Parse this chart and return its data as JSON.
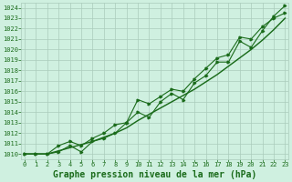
{
  "xlabel": "Graphe pression niveau de la mer (hPa)",
  "x_hours": [
    0,
    1,
    2,
    3,
    4,
    5,
    6,
    7,
    8,
    9,
    10,
    11,
    12,
    13,
    14,
    15,
    16,
    17,
    18,
    19,
    20,
    21,
    22,
    23
  ],
  "pressure_line1": [
    1010.0,
    1010.0,
    1010.0,
    1010.2,
    1010.8,
    1010.2,
    1011.2,
    1011.5,
    1012.0,
    1013.0,
    1014.0,
    1013.5,
    1015.0,
    1015.8,
    1015.2,
    1016.8,
    1017.5,
    1018.8,
    1018.8,
    1020.8,
    1020.2,
    1021.8,
    1023.2,
    1024.2
  ],
  "pressure_line2": [
    1010.0,
    1010.0,
    1010.0,
    1010.8,
    1011.2,
    1010.8,
    1011.5,
    1012.0,
    1012.8,
    1013.0,
    1015.2,
    1014.8,
    1015.5,
    1016.2,
    1016.0,
    1017.2,
    1018.2,
    1019.2,
    1019.5,
    1021.2,
    1021.0,
    1022.2,
    1023.0,
    1023.5
  ],
  "pressure_smooth": [
    1010.0,
    1010.0,
    1010.0,
    1010.3,
    1010.6,
    1010.9,
    1011.2,
    1011.6,
    1012.0,
    1012.5,
    1013.2,
    1013.8,
    1014.4,
    1015.0,
    1015.6,
    1016.2,
    1016.9,
    1017.6,
    1018.4,
    1019.2,
    1020.0,
    1020.9,
    1021.9,
    1023.0
  ],
  "ylim_min": 1009.5,
  "ylim_max": 1024.5,
  "yticks": [
    1010,
    1011,
    1012,
    1013,
    1014,
    1015,
    1016,
    1017,
    1018,
    1019,
    1020,
    1021,
    1022,
    1023,
    1024
  ],
  "xticks": [
    0,
    1,
    2,
    3,
    4,
    5,
    6,
    7,
    8,
    9,
    10,
    11,
    12,
    13,
    14,
    15,
    16,
    17,
    18,
    19,
    20,
    21,
    22,
    23
  ],
  "bg_color": "#cff0e0",
  "grid_color": "#aaccbb",
  "line_color": "#1a6b1a",
  "text_color": "#1a6b1a",
  "font_size_ticks": 5.0,
  "font_size_label": 7.0,
  "line_width": 0.8,
  "marker_size": 2.0
}
